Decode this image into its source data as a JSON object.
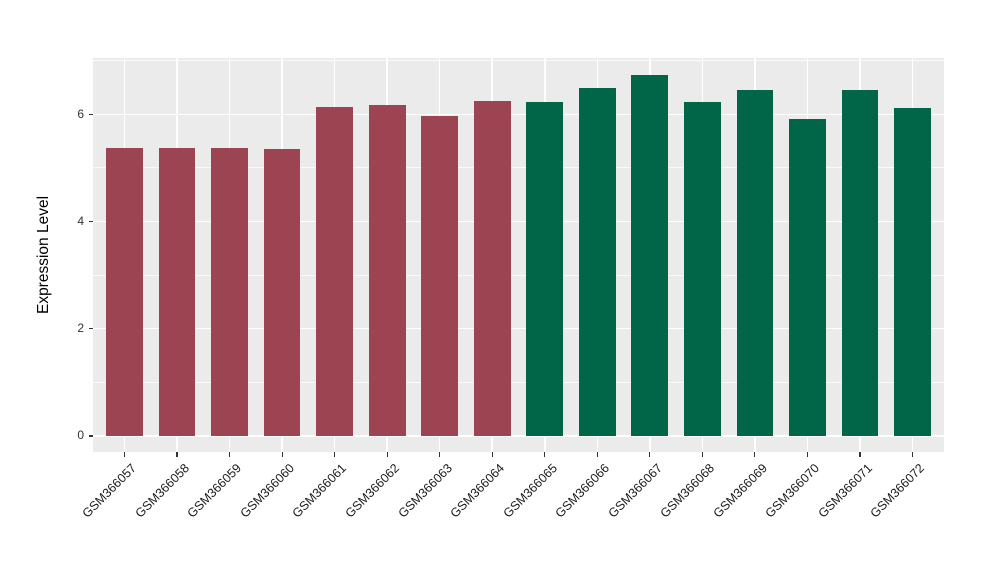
{
  "chart_data": {
    "type": "bar",
    "title": "",
    "xlabel": "",
    "ylabel": "Expression Level",
    "categories": [
      "GSM366057",
      "GSM366058",
      "GSM366059",
      "GSM366060",
      "GSM366061",
      "GSM366062",
      "GSM366063",
      "GSM366064",
      "GSM366065",
      "GSM366066",
      "GSM366067",
      "GSM366068",
      "GSM366069",
      "GSM366070",
      "GSM366071",
      "GSM366072"
    ],
    "values": [
      5.38,
      5.38,
      5.37,
      5.36,
      6.13,
      6.18,
      5.97,
      6.24,
      6.22,
      6.49,
      6.73,
      6.23,
      6.46,
      5.92,
      6.46,
      6.12
    ],
    "bar_colors": [
      "#9D4452",
      "#9D4452",
      "#9D4452",
      "#9D4452",
      "#9D4452",
      "#9D4452",
      "#9D4452",
      "#9D4452",
      "#006647",
      "#006647",
      "#006647",
      "#006647",
      "#006647",
      "#006647",
      "#006647",
      "#006647"
    ],
    "group_split": {
      "red_group_samples": "GSM366057-GSM366064",
      "green_group_samples": "GSM366065-GSM366072"
    },
    "yticks": [
      0,
      2,
      4,
      6
    ],
    "minor_yticks": [
      1,
      3,
      5,
      7
    ],
    "ylim": [
      -0.3,
      7.05
    ],
    "grid": "on",
    "legend": "none",
    "colors": {
      "red_group": "#9D4452",
      "green_group": "#006647",
      "panel_background": "#EBEBEB",
      "gridline": "#FFFFFF",
      "tick_mark": "#333333",
      "axis_text": "#333333",
      "x_axis_text": "#1a1a1a",
      "axis_title": "#000000",
      "figure_background": "#FFFFFF"
    }
  }
}
